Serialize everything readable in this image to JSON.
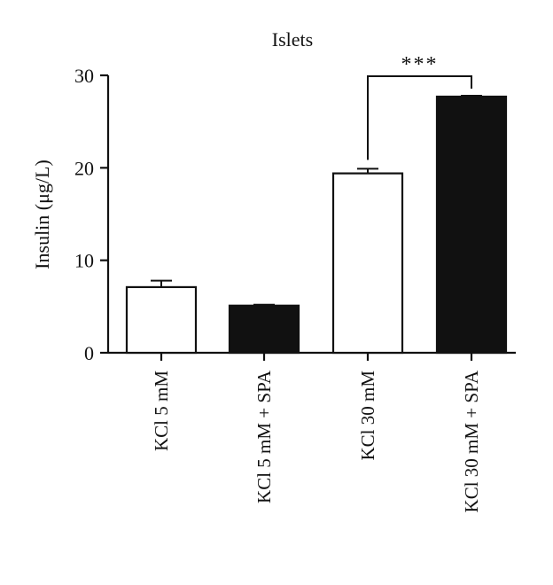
{
  "chart_data": {
    "type": "bar",
    "title": "Islets",
    "ylabel": "Insulin (μg/L)",
    "xlabel": "",
    "ylim": [
      0,
      30
    ],
    "yticks": [
      0,
      10,
      20,
      30
    ],
    "categories": [
      "KCl 5 mM",
      "KCl 5 mM + SPA",
      "KCl 30 mM",
      "KCl 30 mM + SPA"
    ],
    "values": [
      7.1,
      5.1,
      19.4,
      27.7
    ],
    "errors": [
      0.7,
      0.1,
      0.5,
      0.1
    ],
    "bar_fills": [
      "#ffffff",
      "#111111",
      "#ffffff",
      "#111111"
    ],
    "bar_edge_color": "#111111",
    "grid": false,
    "annotations": [
      {
        "text": "***",
        "from_category": 2,
        "to_category": 3
      }
    ]
  }
}
